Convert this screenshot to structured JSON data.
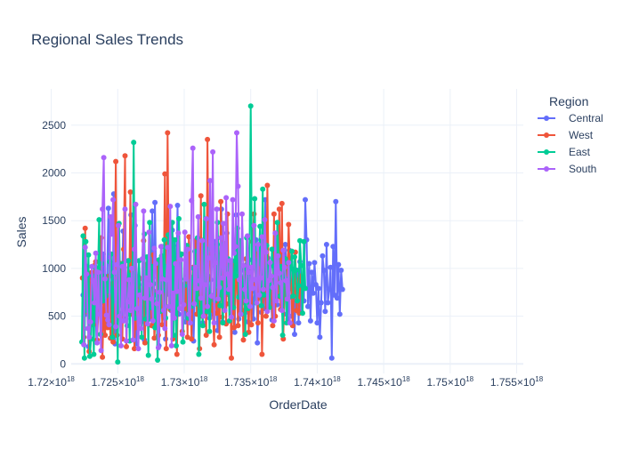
{
  "chart_data": {
    "type": "line",
    "title": "Regional Sales Trends",
    "xlabel": "OrderDate",
    "ylabel": "Sales",
    "xlim": [
      1.7215e+18,
      1.7555e+18
    ],
    "ylim": [
      -100,
      2880
    ],
    "x_ticks": [
      {
        "value": 1.72e+18,
        "mantissa": "1.72",
        "exp": "18"
      },
      {
        "value": 1.725e+18,
        "mantissa": "1.725",
        "exp": "18"
      },
      {
        "value": 1.73e+18,
        "mantissa": "1.73",
        "exp": "18"
      },
      {
        "value": 1.735e+18,
        "mantissa": "1.735",
        "exp": "18"
      },
      {
        "value": 1.74e+18,
        "mantissa": "1.74",
        "exp": "18"
      },
      {
        "value": 1.745e+18,
        "mantissa": "1.745",
        "exp": "18"
      },
      {
        "value": 1.75e+18,
        "mantissa": "1.75",
        "exp": "18"
      },
      {
        "value": 1.755e+18,
        "mantissa": "1.755",
        "exp": "18"
      }
    ],
    "y_ticks": [
      0,
      500,
      1000,
      1500,
      2000,
      2500
    ],
    "grid": true,
    "legend": {
      "title": "Region",
      "placement": "top-right"
    },
    "x_step": 100000000000000.0,
    "series": [
      {
        "name": "Central",
        "color": "#636efa",
        "x_start": 1.7224e+18,
        "values": [
          720,
          880,
          520,
          1020,
          180,
          940,
          610,
          760,
          450,
          880,
          230,
          560,
          940,
          680,
          1000,
          1150,
          720,
          410,
          880,
          1630,
          640,
          800,
          330,
          1780,
          210,
          940,
          1200,
          530,
          970,
          630,
          1390,
          1010,
          470,
          710,
          1080,
          520,
          1560,
          630,
          1000,
          1450,
          210,
          810,
          760,
          580,
          440,
          900,
          250,
          610,
          720,
          1010,
          470,
          560,
          1600,
          440,
          1690,
          760,
          900,
          190,
          660,
          1230,
          590,
          1100,
          260,
          990,
          730,
          780,
          560,
          1400,
          1240,
          540,
          880,
          1660,
          520,
          830,
          660,
          570,
          800,
          440,
          1120,
          950,
          690,
          450,
          850,
          240,
          760,
          1260,
          650,
          560,
          1030,
          590,
          430,
          1300,
          520,
          660,
          920,
          480,
          880,
          520,
          700,
          1280,
          640,
          350,
          880,
          720,
          1620,
          440,
          810,
          620,
          1370,
          870,
          720,
          920,
          510,
          980,
          330,
          1560,
          1100,
          470,
          1280,
          980,
          640,
          900,
          540,
          1040,
          440,
          1090,
          680,
          890,
          470,
          760,
          1300,
          220,
          690,
          900,
          540,
          1210,
          580,
          1720,
          900,
          1110,
          640,
          830,
          460,
          680,
          910,
          1010,
          620,
          1200,
          940,
          880,
          1170,
          520,
          1250,
          990,
          470,
          1190,
          1070,
          500,
          990,
          310,
          780,
          980,
          430,
          1070,
          550,
          890,
          660,
          1720,
          1300,
          600,
          1050,
          450,
          960,
          740,
          1060,
          830,
          430,
          790,
          280,
          640,
          1130,
          980,
          550,
          1250,
          640,
          780,
          1010,
          60,
          1230,
          720,
          1700,
          690,
          1040,
          520,
          980,
          780
        ]
      },
      {
        "name": "West",
        "color": "#ef553b",
        "x_start": 1.72235e+18,
        "values": [
          900,
          280,
          1420,
          700,
          540,
          130,
          880,
          960,
          410,
          1030,
          1070,
          250,
          560,
          910,
          1320,
          70,
          640,
          300,
          810,
          380,
          920,
          270,
          840,
          230,
          730,
          2120,
          300,
          610,
          940,
          1050,
          260,
          1200,
          2180,
          180,
          840,
          620,
          1800,
          520,
          980,
          160,
          640,
          380,
          910,
          740,
          480,
          890,
          1290,
          220,
          1040,
          800,
          680,
          910,
          400,
          1140,
          270,
          500,
          1070,
          300,
          860,
          920,
          410,
          780,
          1990,
          160,
          2420,
          880,
          570,
          1310,
          260,
          780,
          900,
          100,
          1070,
          650,
          1150,
          340,
          830,
          580,
          1160,
          280,
          1330,
          910,
          260,
          1010,
          820,
          1290,
          520,
          910,
          160,
          1760,
          500,
          1110,
          870,
          300,
          2350,
          890,
          1520,
          640,
          560,
          200,
          1020,
          530,
          1130,
          280,
          1700,
          490,
          870,
          1260,
          420,
          1570,
          630,
          930,
          60,
          1070,
          380,
          920,
          840,
          400,
          1290,
          640,
          890,
          250,
          560,
          1100,
          820,
          330,
          1010,
          410,
          1280,
          1570,
          840,
          1150,
          430,
          960,
          1120,
          100,
          860,
          1200,
          500,
          1870,
          810,
          1040,
          880,
          400,
          1570,
          500,
          1230,
          700,
          1620,
          570,
          1680,
          260,
          900,
          1010,
          820,
          1460,
          1020,
          790,
          400,
          750,
          1170,
          560,
          880,
          530,
          920
        ]
      },
      {
        "name": "East",
        "color": "#00cc96",
        "x_start": 1.7223e+18,
        "values": [
          230,
          1340,
          60,
          1280,
          560,
          1140,
          80,
          260,
          920,
          100,
          1010,
          610,
          870,
          1510,
          310,
          1050,
          660,
          920,
          710,
          870,
          760,
          1070,
          1150,
          280,
          930,
          660,
          860,
          20,
          1470,
          700,
          530,
          1050,
          610,
          680,
          400,
          1080,
          240,
          930,
          560,
          2320,
          480,
          910,
          760,
          1080,
          710,
          280,
          830,
          1360,
          470,
          1120,
          90,
          1480,
          590,
          1020,
          840,
          380,
          720,
          40,
          1090,
          550,
          1130,
          770,
          1300,
          480,
          1020,
          1350,
          1080,
          580,
          1480,
          300,
          1300,
          190,
          640,
          1520,
          890,
          1150,
          230,
          820,
          890,
          1240,
          480,
          760,
          600,
          880,
          1000,
          1180,
          630,
          1320,
          100,
          540,
          680,
          400,
          1670,
          920,
          550,
          1200,
          340,
          720,
          1250,
          1130,
          660,
          830,
          1480,
          1080,
          610,
          1250,
          430,
          780,
          1000,
          750,
          1100,
          450,
          940,
          1080,
          590,
          1170,
          920,
          1420,
          700,
          1290,
          520,
          840,
          1000,
          310,
          1320,
          580,
          900,
          2700,
          870,
          1010,
          1730,
          640,
          1080,
          1050,
          1440,
          610,
          1830,
          720,
          880,
          1240,
          1000,
          590,
          820,
          1200,
          1030,
          660,
          840,
          1480,
          1130,
          710,
          1020,
          300,
          940,
          1100,
          430,
          890,
          700,
          1000,
          1180,
          710,
          1120,
          980,
          660,
          820,
          1290,
          1030,
          530,
          1280,
          790
        ]
      },
      {
        "name": "South",
        "color": "#ab63fa",
        "x_start": 1.72245e+18,
        "values": [
          200,
          1220,
          940,
          370,
          280,
          440,
          1020,
          870,
          640,
          1160,
          220,
          960,
          520,
          140,
          1620,
          2160,
          890,
          510,
          460,
          410,
          1540,
          1360,
          1720,
          960,
          390,
          1040,
          1450,
          500,
          190,
          1020,
          450,
          1620,
          240,
          650,
          880,
          560,
          1000,
          250,
          1200,
          1670,
          580,
          160,
          720,
          370,
          1100,
          1600,
          690,
          900,
          420,
          1380,
          830,
          680,
          450,
          1210,
          1050,
          630,
          170,
          750,
          1230,
          890,
          560,
          370,
          880,
          1220,
          600,
          1650,
          190,
          740,
          480,
          1050,
          760,
          1370,
          580,
          1090,
          310,
          620,
          1380,
          890,
          1200,
          520,
          430,
          1710,
          2260,
          630,
          1010,
          790,
          1540,
          870,
          690,
          1290,
          500,
          830,
          1520,
          600,
          1110,
          1920,
          710,
          2220,
          430,
          1060,
          1620,
          680,
          800,
          1320,
          900,
          1470,
          560,
          1740,
          940,
          780,
          1080,
          490,
          1720,
          1160,
          1230,
          2420,
          1860,
          880,
          520,
          1570,
          1030,
          780,
          660,
          1340,
          960,
          600,
          1010,
          790,
          1450,
          880,
          640,
          1250,
          720,
          900,
          1330,
          780,
          1510,
          1170,
          550,
          870,
          1060,
          920,
          800,
          450,
          1370,
          660,
          1130,
          950,
          850,
          560,
          1190,
          1010,
          870,
          680,
          1060,
          430
        ]
      }
    ]
  }
}
